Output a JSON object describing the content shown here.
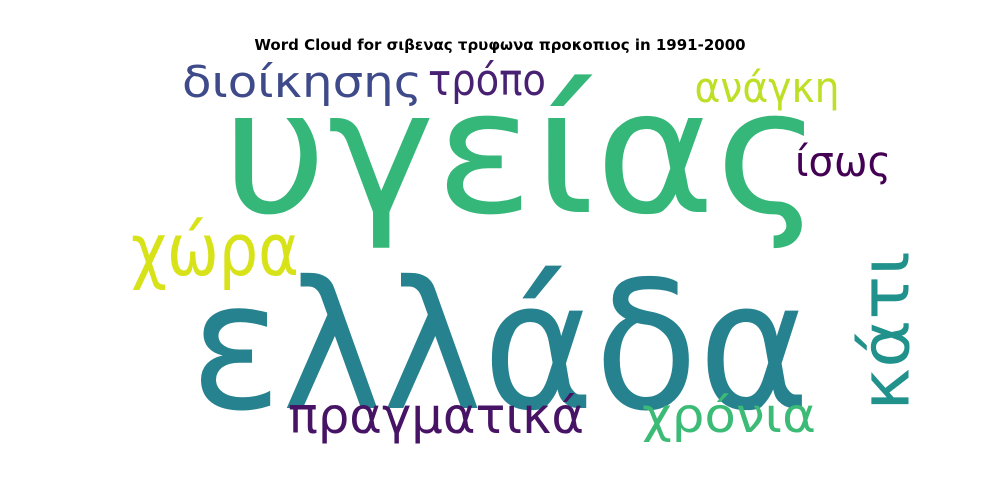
{
  "chart_data": {
    "type": "wordcloud",
    "title": "Word Cloud for σιβενας τρυφωνα προκοπιος in 1991-2000",
    "words": [
      {
        "text": "υγείας",
        "color": "#35b779"
      },
      {
        "text": "ελλάδα",
        "color": "#26828e"
      },
      {
        "text": "διοίκησης",
        "color": "#3e4a89"
      },
      {
        "text": "τρόπο",
        "color": "#482173"
      },
      {
        "text": "ανάγκη",
        "color": "#bddf26"
      },
      {
        "text": "ίσως",
        "color": "#440154"
      },
      {
        "text": "χώρα",
        "color": "#d8e219"
      },
      {
        "text": "κάτι",
        "color": "#21918c"
      },
      {
        "text": "πραγματικά",
        "color": "#471365"
      },
      {
        "text": "χρόνια",
        "color": "#3bbb75"
      }
    ]
  }
}
